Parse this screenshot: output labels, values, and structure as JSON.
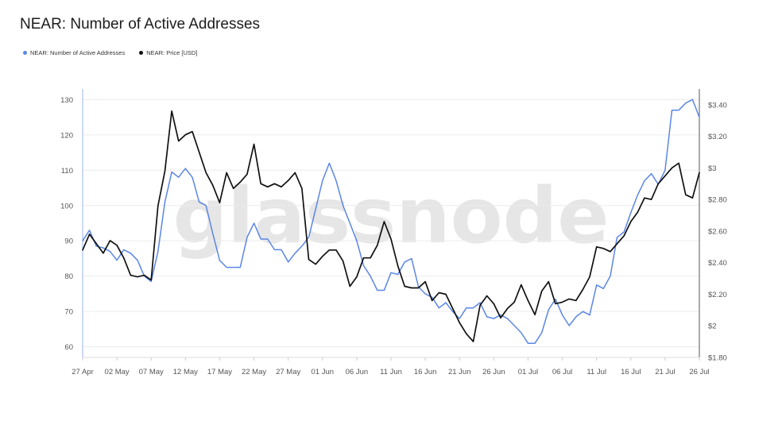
{
  "title": "NEAR: Number of Active Addresses",
  "watermark": "glassnode",
  "legend": [
    {
      "label": "NEAR: Number of Active Addresses",
      "color": "#5b86e5"
    },
    {
      "label": "NEAR: Price [USD]",
      "color": "#111111"
    }
  ],
  "chart_data": {
    "type": "line",
    "x_ticks": [
      "27 Apr",
      "02 May",
      "07 May",
      "12 May",
      "17 May",
      "22 May",
      "27 May",
      "01 Jun",
      "06 Jun",
      "11 Jun",
      "16 Jun",
      "21 Jun",
      "26 Jun",
      "01 Jul",
      "06 Jul",
      "11 Jul",
      "16 Jul",
      "21 Jul",
      "26 Jul"
    ],
    "x_start": "2021-04-27",
    "x_end": "2021-07-26",
    "y_left": {
      "min": 57,
      "max": 133,
      "ticks": [
        60,
        70,
        80,
        90,
        100,
        110,
        120,
        130
      ]
    },
    "y_right": {
      "min": 1.8,
      "max": 3.5,
      "ticks": [
        1.8,
        2,
        2.2,
        2.4,
        2.6,
        2.8,
        3,
        3.2,
        3.4
      ],
      "tick_labels": [
        "$1.80",
        "$2",
        "$2.20",
        "$2.40",
        "$2.60",
        "$2.80",
        "$3",
        "$3.20",
        "$3.40"
      ]
    },
    "series": [
      {
        "name": "NEAR: Number of Active Addresses",
        "axis": "left",
        "color": "#5b86e5",
        "values": [
          90,
          93,
          88.5,
          88,
          87,
          84.5,
          87.5,
          86.5,
          84.5,
          80,
          78.5,
          87,
          101,
          109.5,
          108,
          110.5,
          108,
          101,
          100,
          92,
          84.5,
          82.5,
          82.5,
          82.5,
          91,
          95,
          90.5,
          90.5,
          87.5,
          87.5,
          84,
          86.5,
          88.5,
          91,
          99,
          107,
          112,
          107,
          100,
          95,
          90,
          83,
          80,
          76,
          76,
          81,
          80.5,
          84,
          85,
          77,
          75,
          74,
          71,
          72.5,
          70,
          68,
          71,
          71,
          72.5,
          68.5,
          68,
          69,
          68,
          66,
          64,
          61,
          61,
          64,
          70.5,
          73.5,
          69,
          66,
          68.5,
          70,
          69,
          77.5,
          76.5,
          80,
          91,
          92.5,
          98,
          103,
          107,
          109,
          106,
          110,
          127,
          127,
          129,
          130,
          125
        ]
      },
      {
        "name": "NEAR: Price [USD]",
        "axis": "right",
        "color": "#111111",
        "values": [
          2.48,
          2.58,
          2.52,
          2.46,
          2.54,
          2.51,
          2.43,
          2.32,
          2.31,
          2.32,
          2.29,
          2.76,
          2.98,
          3.36,
          3.17,
          3.21,
          3.23,
          3.1,
          2.97,
          2.89,
          2.78,
          2.97,
          2.87,
          2.91,
          2.96,
          3.15,
          2.9,
          2.88,
          2.9,
          2.88,
          2.92,
          2.97,
          2.87,
          2.42,
          2.39,
          2.44,
          2.48,
          2.48,
          2.41,
          2.25,
          2.31,
          2.43,
          2.43,
          2.51,
          2.66,
          2.55,
          2.38,
          2.25,
          2.24,
          2.24,
          2.28,
          2.16,
          2.21,
          2.2,
          2.11,
          2.02,
          1.95,
          1.9,
          2.13,
          2.19,
          2.14,
          2.05,
          2.11,
          2.15,
          2.26,
          2.16,
          2.07,
          2.22,
          2.28,
          2.14,
          2.15,
          2.17,
          2.16,
          2.23,
          2.31,
          2.5,
          2.49,
          2.47,
          2.52,
          2.57,
          2.66,
          2.72,
          2.81,
          2.8,
          2.9,
          2.95,
          3.0,
          3.03,
          2.83,
          2.81,
          2.97
        ]
      }
    ],
    "grid": true,
    "legend_position": "top-left"
  }
}
